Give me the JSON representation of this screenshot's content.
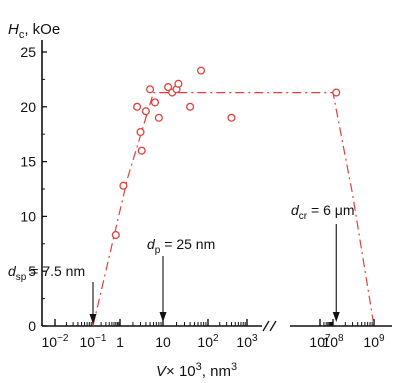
{
  "chart_data": {
    "type": "scatter",
    "title": "",
    "ylabel_main": "H",
    "ylabel_sub": "c",
    "ylabel_unit": ", kOe",
    "xlabel_main": "V",
    "xlabel_rest": "× 10",
    "xlabel_exp": "3",
    "xlabel_unit": ", nm",
    "xlabel_unit_exp": "3",
    "ylim": [
      0,
      25
    ],
    "yticks": [
      "0",
      "5",
      "10",
      "15",
      "20",
      "25"
    ],
    "xtick_labels": [
      {
        "base": "10",
        "exp": "−2",
        "v": 0.01
      },
      {
        "base": "10",
        "exp": "−1",
        "v": 0.1
      },
      {
        "base": "1",
        "exp": "",
        "v": 1
      },
      {
        "base": "10",
        "exp": "",
        "v": 10
      },
      {
        "base": "10",
        "exp": "2",
        "v": 100
      },
      {
        "base": "10",
        "exp": "3",
        "v": 1000
      },
      {
        "base": "10",
        "exp": "7",
        "v": 10000000
      },
      {
        "base": "10",
        "exp": "8",
        "v": 100000000
      },
      {
        "base": "10",
        "exp": "9",
        "v": 1000000000
      }
    ],
    "axis_break": "between 10^3 and 10^7",
    "series": [
      {
        "points": [
          {
            "x": 0.7,
            "y": 8.3
          },
          {
            "x": 1.2,
            "y": 12.8
          },
          {
            "x": 3.2,
            "y": 16.0
          },
          {
            "x": 3.0,
            "y": 17.7
          },
          {
            "x": 2.5,
            "y": 20.0
          },
          {
            "x": 4.0,
            "y": 19.6
          },
          {
            "x": 5.0,
            "y": 21.6
          },
          {
            "x": 6.5,
            "y": 20.4
          },
          {
            "x": 8.0,
            "y": 19.0
          },
          {
            "x": 13.0,
            "y": 21.8
          },
          {
            "x": 16.0,
            "y": 21.3
          },
          {
            "x": 20.0,
            "y": 21.6
          },
          {
            "x": 22.0,
            "y": 22.1
          },
          {
            "x": 40.0,
            "y": 20.0
          },
          {
            "x": 70.0,
            "y": 23.3
          },
          {
            "x": 400.0,
            "y": 19.0
          },
          {
            "x": 120000000,
            "y": 21.3
          }
        ]
      }
    ],
    "trend_line": [
      {
        "x": 0.1,
        "y": 0
      },
      {
        "x": 1.5,
        "y": 13.5
      },
      {
        "x": 6,
        "y": 21.3
      },
      {
        "x": 100000000,
        "y": 21.3
      },
      {
        "x": 300000000,
        "y": 12
      },
      {
        "x": 1000000000,
        "y": 0
      }
    ],
    "annotations": [
      {
        "name": "d-sp",
        "main": "d",
        "sub": "sp",
        "rest": " = 7.5 nm",
        "x": 0.1
      },
      {
        "name": "d-p",
        "main": "d",
        "sub": "p",
        "rest": " = 25 nm",
        "x": 10
      },
      {
        "name": "d-cr",
        "main": "d",
        "sub": "cr",
        "rest": " = 6 μm",
        "x": 120000000
      }
    ],
    "colors": {
      "data": "#e0403a",
      "axis": "#111111"
    }
  }
}
